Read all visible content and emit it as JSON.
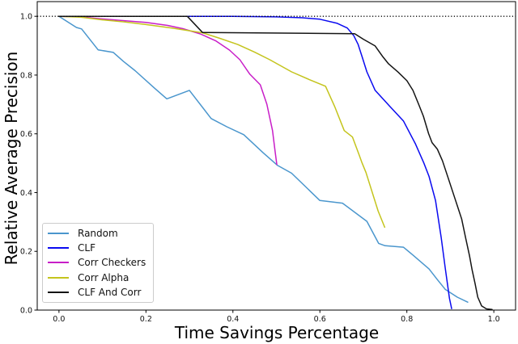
{
  "chart_data": {
    "type": "line",
    "title": "",
    "xlabel": "Time Savings Percentage",
    "ylabel": "Relative Average Precision",
    "xlim": [
      -0.05,
      1.05
    ],
    "ylim": [
      0,
      1.05
    ],
    "xticks": [
      0.0,
      0.2,
      0.4,
      0.6,
      0.8,
      1.0
    ],
    "yticks": [
      0.0,
      0.2,
      0.4,
      0.6,
      0.8,
      1.0
    ],
    "grid": false,
    "legend_position": "lower-left",
    "reference_line": {
      "y": 1.0,
      "style": "dotted",
      "color": "#000000"
    },
    "colors": {
      "spine": "#000000",
      "tick_label": "#111111",
      "background": "#ffffff"
    },
    "series": [
      {
        "name": "Random",
        "color": "#4a96cd",
        "points": [
          [
            0.0,
            1.0
          ],
          [
            0.04,
            0.962
          ],
          [
            0.052,
            0.957
          ],
          [
            0.09,
            0.886
          ],
          [
            0.125,
            0.877
          ],
          [
            0.148,
            0.847
          ],
          [
            0.175,
            0.815
          ],
          [
            0.22,
            0.755
          ],
          [
            0.248,
            0.719
          ],
          [
            0.3,
            0.748
          ],
          [
            0.35,
            0.652
          ],
          [
            0.386,
            0.624
          ],
          [
            0.425,
            0.597
          ],
          [
            0.47,
            0.535
          ],
          [
            0.502,
            0.493
          ],
          [
            0.535,
            0.466
          ],
          [
            0.6,
            0.373
          ],
          [
            0.652,
            0.364
          ],
          [
            0.708,
            0.302
          ],
          [
            0.735,
            0.227
          ],
          [
            0.75,
            0.219
          ],
          [
            0.792,
            0.214
          ],
          [
            0.815,
            0.186
          ],
          [
            0.851,
            0.14
          ],
          [
            0.87,
            0.104
          ],
          [
            0.888,
            0.071
          ],
          [
            0.916,
            0.044
          ],
          [
            0.94,
            0.027
          ]
        ]
      },
      {
        "name": "CLF",
        "color": "#0a0af0",
        "points": [
          [
            0.0,
            1.0
          ],
          [
            0.4,
            1.0
          ],
          [
            0.5,
            0.998
          ],
          [
            0.56,
            0.995
          ],
          [
            0.6,
            0.99
          ],
          [
            0.64,
            0.976
          ],
          [
            0.663,
            0.96
          ],
          [
            0.678,
            0.934
          ],
          [
            0.688,
            0.904
          ],
          [
            0.697,
            0.863
          ],
          [
            0.708,
            0.811
          ],
          [
            0.727,
            0.748
          ],
          [
            0.76,
            0.695
          ],
          [
            0.792,
            0.644
          ],
          [
            0.82,
            0.565
          ],
          [
            0.839,
            0.501
          ],
          [
            0.851,
            0.455
          ],
          [
            0.866,
            0.373
          ],
          [
            0.879,
            0.247
          ],
          [
            0.888,
            0.145
          ],
          [
            0.898,
            0.04
          ],
          [
            0.903,
            0.005
          ]
        ]
      },
      {
        "name": "Corr Checkers",
        "color": "#c81ec8",
        "points": [
          [
            0.0,
            1.0
          ],
          [
            0.05,
            0.998
          ],
          [
            0.1,
            0.991
          ],
          [
            0.15,
            0.985
          ],
          [
            0.2,
            0.979
          ],
          [
            0.25,
            0.969
          ],
          [
            0.285,
            0.958
          ],
          [
            0.325,
            0.94
          ],
          [
            0.36,
            0.917
          ],
          [
            0.392,
            0.885
          ],
          [
            0.416,
            0.852
          ],
          [
            0.439,
            0.803
          ],
          [
            0.463,
            0.767
          ],
          [
            0.478,
            0.701
          ],
          [
            0.491,
            0.611
          ],
          [
            0.497,
            0.54
          ],
          [
            0.501,
            0.496
          ]
        ]
      },
      {
        "name": "Corr Alpha",
        "color": "#c4c41c",
        "points": [
          [
            0.0,
            1.0
          ],
          [
            0.05,
            0.997
          ],
          [
            0.1,
            0.988
          ],
          [
            0.15,
            0.981
          ],
          [
            0.2,
            0.972
          ],
          [
            0.26,
            0.96
          ],
          [
            0.33,
            0.944
          ],
          [
            0.37,
            0.925
          ],
          [
            0.411,
            0.904
          ],
          [
            0.45,
            0.878
          ],
          [
            0.485,
            0.852
          ],
          [
            0.535,
            0.811
          ],
          [
            0.575,
            0.785
          ],
          [
            0.6,
            0.77
          ],
          [
            0.613,
            0.762
          ],
          [
            0.634,
            0.693
          ],
          [
            0.656,
            0.611
          ],
          [
            0.675,
            0.589
          ],
          [
            0.69,
            0.529
          ],
          [
            0.697,
            0.501
          ],
          [
            0.706,
            0.468
          ],
          [
            0.734,
            0.337
          ],
          [
            0.749,
            0.282
          ]
        ]
      },
      {
        "name": "CLF And Corr",
        "color": "#141414",
        "points": [
          [
            0.0,
            1.0
          ],
          [
            0.295,
            1.0
          ],
          [
            0.33,
            0.945
          ],
          [
            0.68,
            0.941
          ],
          [
            0.7,
            0.922
          ],
          [
            0.727,
            0.899
          ],
          [
            0.745,
            0.862
          ],
          [
            0.758,
            0.838
          ],
          [
            0.78,
            0.81
          ],
          [
            0.8,
            0.781
          ],
          [
            0.814,
            0.748
          ],
          [
            0.827,
            0.701
          ],
          [
            0.838,
            0.66
          ],
          [
            0.85,
            0.601
          ],
          [
            0.858,
            0.57
          ],
          [
            0.87,
            0.548
          ],
          [
            0.882,
            0.508
          ],
          [
            0.895,
            0.45
          ],
          [
            0.912,
            0.373
          ],
          [
            0.926,
            0.31
          ],
          [
            0.935,
            0.247
          ],
          [
            0.944,
            0.186
          ],
          [
            0.95,
            0.137
          ],
          [
            0.957,
            0.09
          ],
          [
            0.963,
            0.044
          ],
          [
            0.972,
            0.014
          ],
          [
            0.983,
            0.004
          ],
          [
            0.996,
            0.002
          ]
        ]
      }
    ]
  }
}
